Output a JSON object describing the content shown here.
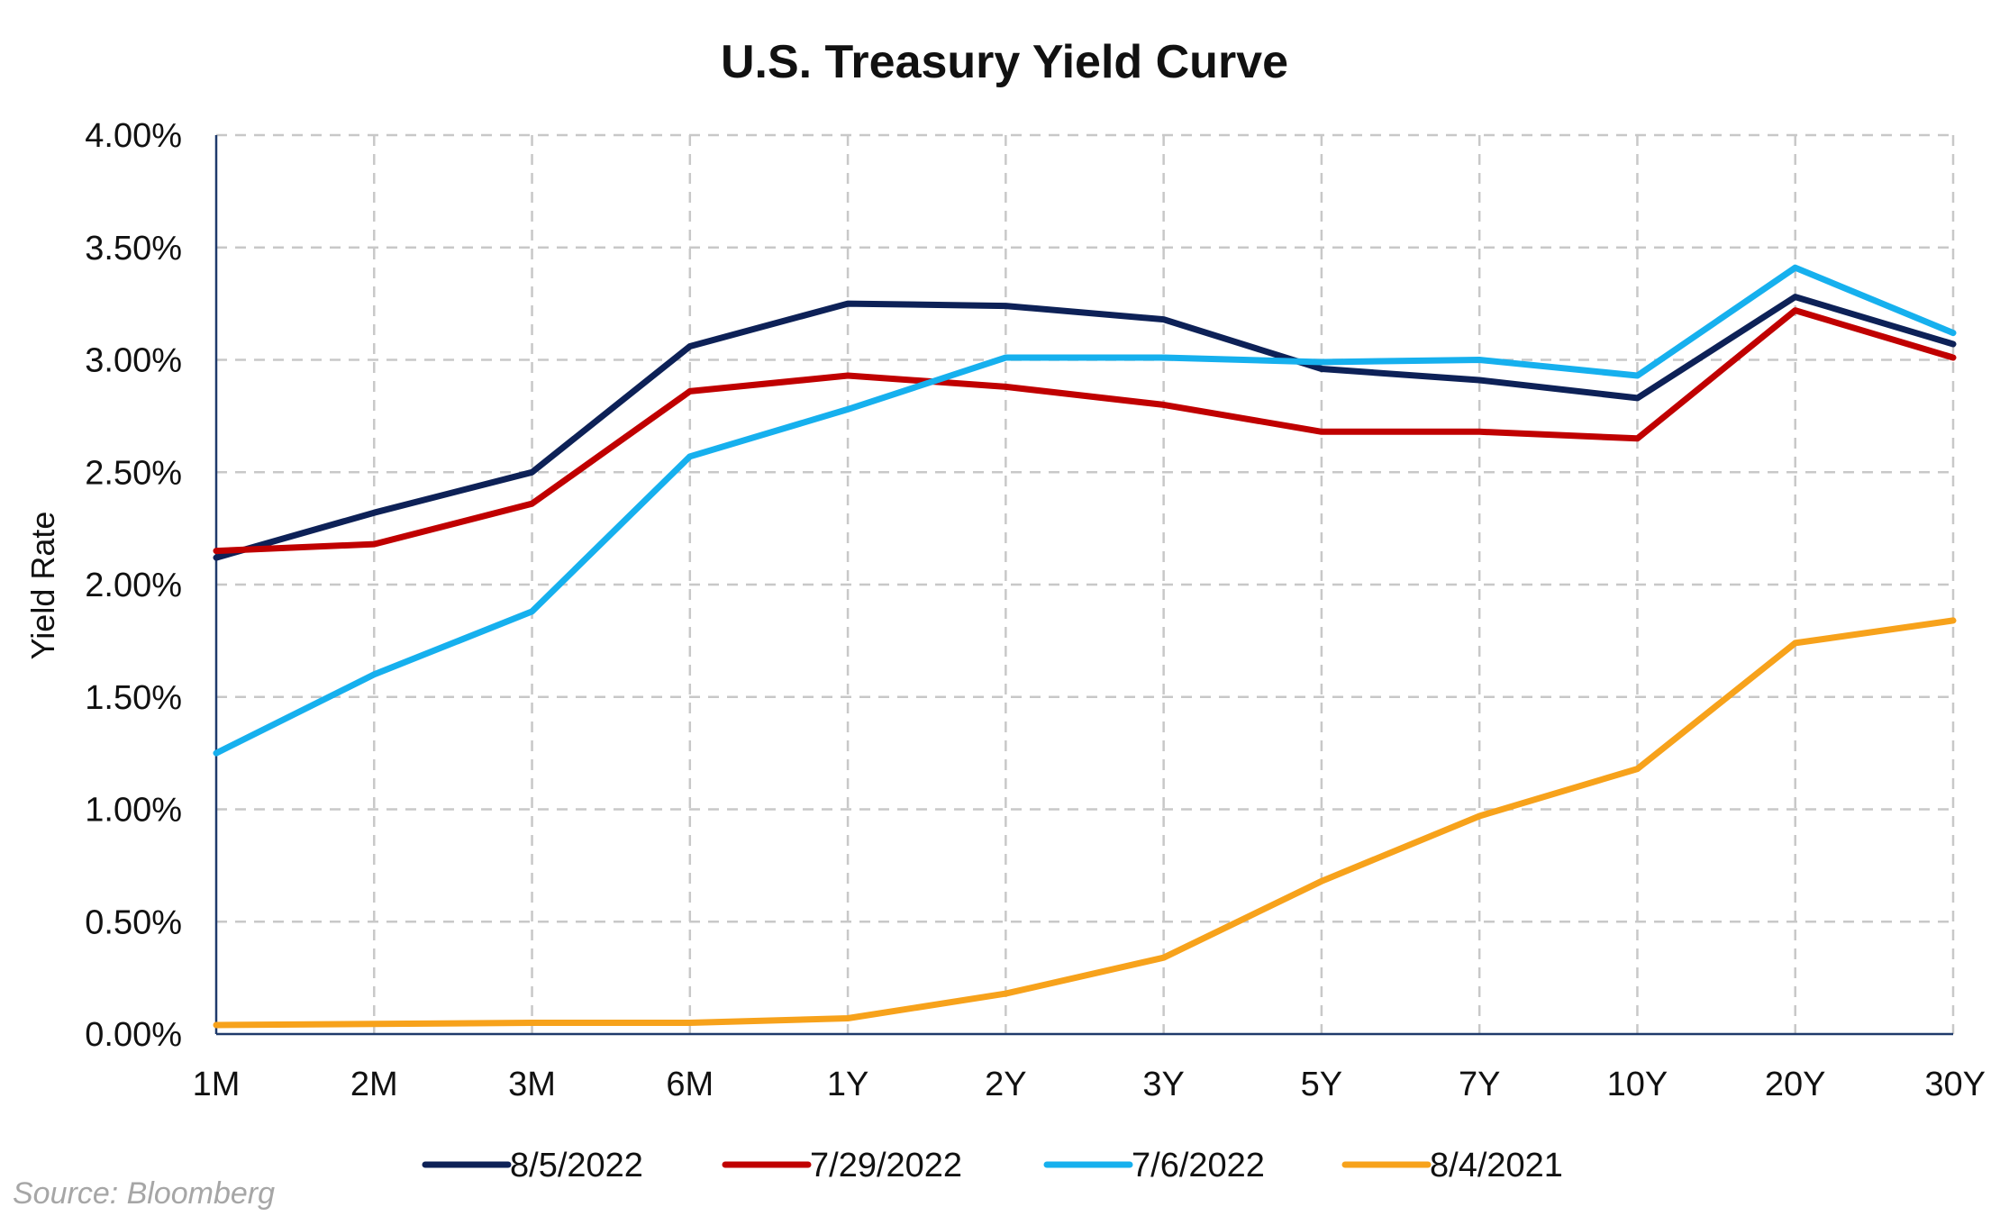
{
  "chart_data": {
    "type": "line",
    "title": "U.S. Treasury Yield Curve",
    "xlabel": "",
    "ylabel": "Yield Rate",
    "categories": [
      "1M",
      "2M",
      "3M",
      "6M",
      "1Y",
      "2Y",
      "3Y",
      "5Y",
      "7Y",
      "10Y",
      "20Y",
      "30Y"
    ],
    "y_ticks": [
      "0.00%",
      "0.50%",
      "1.00%",
      "1.50%",
      "2.00%",
      "2.50%",
      "3.00%",
      "3.50%",
      "4.00%"
    ],
    "ylim": [
      0,
      4
    ],
    "grid": true,
    "legend_position": "bottom",
    "series": [
      {
        "name": "8/5/2022",
        "color": "#0d2157",
        "values": [
          2.12,
          2.32,
          2.5,
          3.06,
          3.25,
          3.24,
          3.18,
          2.96,
          2.91,
          2.83,
          3.28,
          3.07
        ]
      },
      {
        "name": "7/29/2022",
        "color": "#c00000",
        "values": [
          2.15,
          2.18,
          2.36,
          2.86,
          2.93,
          2.88,
          2.8,
          2.68,
          2.68,
          2.65,
          3.22,
          3.01
        ]
      },
      {
        "name": "7/6/2022",
        "color": "#16b0ee",
        "values": [
          1.25,
          1.6,
          1.88,
          2.57,
          2.78,
          3.01,
          3.01,
          2.99,
          3.0,
          2.93,
          3.41,
          3.12
        ]
      },
      {
        "name": "8/4/2021",
        "color": "#f7a21b",
        "values": [
          0.04,
          0.045,
          0.05,
          0.05,
          0.07,
          0.18,
          0.34,
          0.68,
          0.97,
          1.18,
          1.74,
          1.84
        ]
      }
    ]
  },
  "source": "Source: Bloomberg"
}
